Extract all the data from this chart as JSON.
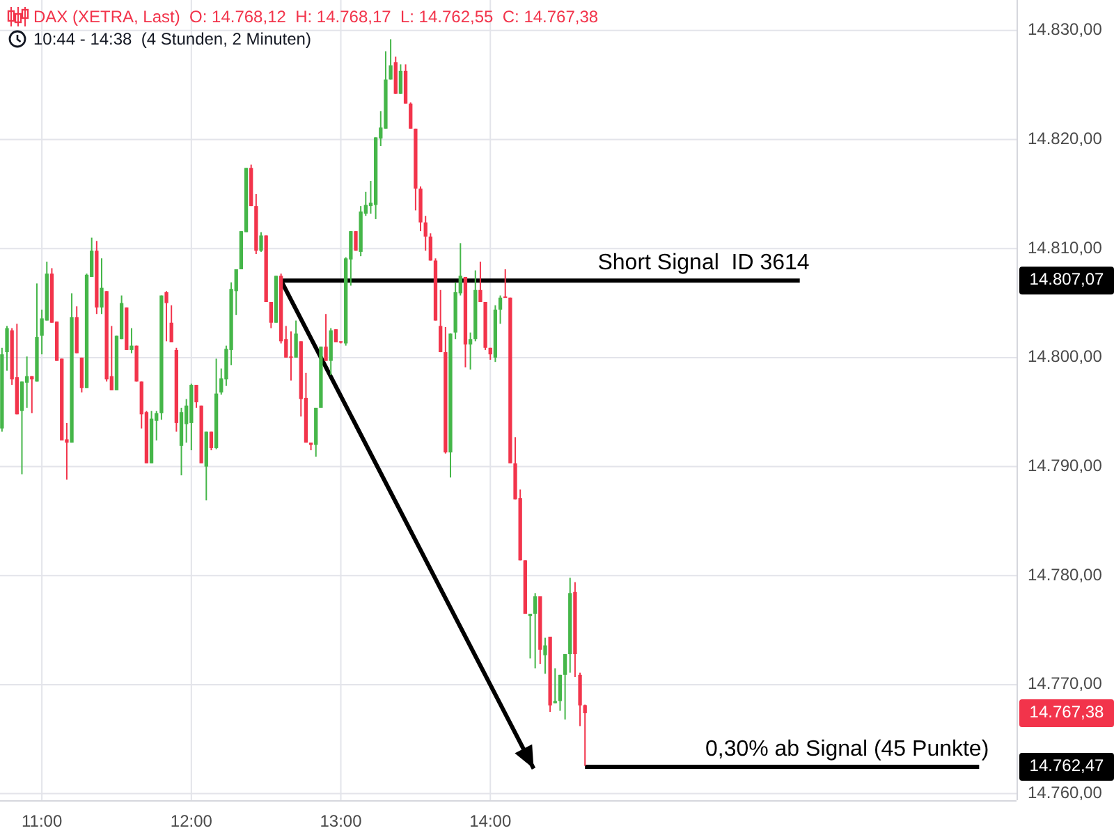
{
  "chart_data": {
    "type": "candlestick",
    "title": "DAX (XETRA, Last)  O: 14.768,12  H: 14.768,17  L: 14.762,55  C: 14.767,38",
    "subtitle": "10:44 - 14:38  (4 Stunden, 2 Minuten)",
    "x": [
      10.7333,
      10.7667,
      10.8,
      10.8333,
      10.8667,
      10.9,
      10.9333,
      10.9667,
      11,
      11.0333,
      11.0667,
      11.1,
      11.1333,
      11.1667,
      11.2,
      11.2333,
      11.2667,
      11.3,
      11.3333,
      11.3667,
      11.4,
      11.4333,
      11.4667,
      11.5,
      11.5333,
      11.5667,
      11.6,
      11.6333,
      11.6667,
      11.7,
      11.7333,
      11.7667,
      11.8,
      11.8333,
      11.8667,
      11.9,
      11.9333,
      11.9667,
      12,
      12.0333,
      12.0667,
      12.1,
      12.1333,
      12.1667,
      12.2,
      12.2333,
      12.2667,
      12.3,
      12.3333,
      12.3667,
      12.4,
      12.4333,
      12.4667,
      12.5,
      12.5333,
      12.5667,
      12.6,
      12.6333,
      12.6667,
      12.7,
      12.7333,
      12.7667,
      12.8,
      12.8333,
      12.8667,
      12.9,
      12.9333,
      12.9667,
      13,
      13.0333,
      13.0667,
      13.1,
      13.1333,
      13.1667,
      13.2,
      13.2333,
      13.2667,
      13.3,
      13.3333,
      13.3667,
      13.4,
      13.4333,
      13.4667,
      13.5,
      13.5333,
      13.5667,
      13.6,
      13.6333,
      13.6667,
      13.7,
      13.7333,
      13.7667,
      13.8,
      13.8333,
      13.8667,
      13.9,
      13.9333,
      13.9667,
      14,
      14.0333,
      14.0667,
      14.1,
      14.1333,
      14.1667,
      14.2,
      14.2333,
      14.2667,
      14.3,
      14.3333,
      14.3667,
      14.4,
      14.4333,
      14.4667,
      14.5,
      14.5333,
      14.5667,
      14.6,
      14.6333
    ],
    "ohlc": [
      [
        14793.5,
        14800.9,
        14793.2,
        14800.3
      ],
      [
        14800.5,
        14802.9,
        14798.8,
        14802.7
      ],
      [
        14802.5,
        14802.7,
        14797.5,
        14798.0
      ],
      [
        14798.2,
        14803.1,
        14794.8,
        14794.8
      ],
      [
        14795.1,
        14797.8,
        14789.3,
        14797.8
      ],
      [
        14797.7,
        14800.1,
        14795.4,
        14798.3
      ],
      [
        14798.3,
        14798.3,
        14794.9,
        14798.0
      ],
      [
        14797.8,
        14806.8,
        14797.8,
        14801.9
      ],
      [
        14802.0,
        14804.4,
        14800.3,
        14803.6
      ],
      [
        14803.4,
        14808.8,
        14803.4,
        14807.7
      ],
      [
        14807.7,
        14808.2,
        14803.2,
        14803.2
      ],
      [
        14803.3,
        14803.3,
        14799.7,
        14799.7
      ],
      [
        14799.9,
        14799.9,
        14792.4,
        14792.4
      ],
      [
        14792.5,
        14794.0,
        14788.8,
        14792.2
      ],
      [
        14792.2,
        14805.9,
        14792.2,
        14803.7
      ],
      [
        14803.7,
        14804.7,
        14800.4,
        14800.4
      ],
      [
        14800.0,
        14800.0,
        14796.8,
        14797.2
      ],
      [
        14797.2,
        14807.7,
        14797.2,
        14807.6
      ],
      [
        14807.4,
        14811.0,
        14807.4,
        14809.8
      ],
      [
        14809.8,
        14810.7,
        14804.0,
        14804.6
      ],
      [
        14804.6,
        14809.1,
        14804.0,
        14806.4
      ],
      [
        14806.1,
        14806.1,
        14797.8,
        14798.0
      ],
      [
        14798.3,
        14802.9,
        14797.0,
        14797.0
      ],
      [
        14797.0,
        14802.0,
        14797.0,
        14802.0
      ],
      [
        14801.7,
        14805.7,
        14801.7,
        14805.0
      ],
      [
        14804.6,
        14804.6,
        14800.7,
        14800.7
      ],
      [
        14800.7,
        14802.7,
        14800.4,
        14801.1
      ],
      [
        14801.1,
        14801.1,
        14797.8,
        14797.8
      ],
      [
        14797.8,
        14797.8,
        14793.5,
        14794.8
      ],
      [
        14795.0,
        14795.1,
        14790.3,
        14790.3
      ],
      [
        14790.3,
        14795.1,
        14790.3,
        14794.4
      ],
      [
        14794.2,
        14795.1,
        14792.4,
        14794.9
      ],
      [
        14794.9,
        14805.7,
        14794.3,
        14805.7
      ],
      [
        14806.0,
        14806.1,
        14801.5,
        14805.0
      ],
      [
        14803.2,
        14804.8,
        14801.4,
        14801.4
      ],
      [
        14800.7,
        14800.9,
        14793.2,
        14794.0
      ],
      [
        14791.9,
        14795.4,
        14789.2,
        14795.0
      ],
      [
        14793.9,
        14796.2,
        14792.2,
        14795.6
      ],
      [
        14794.0,
        14797.6,
        14791.5,
        14797.5
      ],
      [
        14797.5,
        14797.5,
        14795.4,
        14795.9
      ],
      [
        14795.6,
        14795.6,
        14790.3,
        14790.3
      ],
      [
        14790.0,
        14793.2,
        14786.9,
        14793.2
      ],
      [
        14793.2,
        14793.2,
        14791.5,
        14791.7
      ],
      [
        14791.7,
        14799.9,
        14791.6,
        14796.7
      ],
      [
        14796.8,
        14799.0,
        14796.6,
        14798.1
      ],
      [
        14798.0,
        14801.1,
        14797.4,
        14800.8
      ],
      [
        14800.7,
        14806.9,
        14799.3,
        14806.3
      ],
      [
        14806.1,
        14808.1,
        14803.9,
        14808.1
      ],
      [
        14808.1,
        14811.6,
        14808.1,
        14811.6
      ],
      [
        14811.5,
        14817.4,
        14811.5,
        14817.4
      ],
      [
        14817.4,
        14817.7,
        14813.9,
        14813.9
      ],
      [
        14813.9,
        14815.0,
        14809.5,
        14809.8
      ],
      [
        14809.8,
        14811.5,
        14809.7,
        14811.2
      ],
      [
        14811.2,
        14811.2,
        14805.1,
        14805.1
      ],
      [
        14805.1,
        14805.1,
        14802.7,
        14803.2
      ],
      [
        14803.2,
        14807.5,
        14803.2,
        14807.5
      ],
      [
        14807.5,
        14807.7,
        14801.3,
        14801.5
      ],
      [
        14801.7,
        14802.9,
        14800.0,
        14800.0
      ],
      [
        14800.1,
        14802.4,
        14797.9,
        14800.0
      ],
      [
        14800.0,
        14803.4,
        14800.0,
        14802.2
      ],
      [
        14801.5,
        14801.5,
        14794.6,
        14796.2
      ],
      [
        14796.3,
        14798.6,
        14792.2,
        14792.2
      ],
      [
        14792.2,
        14792.2,
        14791.5,
        14792.0
      ],
      [
        14792.0,
        14795.4,
        14790.9,
        14795.4
      ],
      [
        14795.4,
        14801.0,
        14795.4,
        14801.0
      ],
      [
        14801.0,
        14804.0,
        14799.7,
        14799.7
      ],
      [
        14799.7,
        14802.7,
        14798.4,
        14802.5
      ],
      [
        14802.6,
        14802.6,
        14801.4,
        14801.4
      ],
      [
        14801.5,
        14801.5,
        14801.3,
        14801.4
      ],
      [
        14801.3,
        14809.2,
        14801.1,
        14809.1
      ],
      [
        14809.0,
        14811.6,
        14806.6,
        14811.6
      ],
      [
        14811.6,
        14811.6,
        14809.8,
        14809.8
      ],
      [
        14809.7,
        14813.9,
        14809.3,
        14813.4
      ],
      [
        14813.2,
        14815.2,
        14813.0,
        14814.0
      ],
      [
        14813.9,
        14816.2,
        14813.2,
        14814.2
      ],
      [
        14814.0,
        14820.2,
        14812.7,
        14820.2
      ],
      [
        14820.1,
        14822.6,
        14819.4,
        14821.1
      ],
      [
        14821.0,
        14828.1,
        14821.0,
        14825.5
      ],
      [
        14825.5,
        14829.2,
        14825.5,
        14826.8
      ],
      [
        14827.1,
        14827.6,
        14824.2,
        14824.2
      ],
      [
        14824.2,
        14826.9,
        14824.2,
        14826.3
      ],
      [
        14826.3,
        14826.9,
        14823.3,
        14823.3
      ],
      [
        14823.3,
        14823.4,
        14821.0,
        14821.0
      ],
      [
        14821.0,
        14821.0,
        14813.5,
        14815.5
      ],
      [
        14815.5,
        14815.7,
        14811.6,
        14812.4
      ],
      [
        14812.4,
        14813.0,
        14809.8,
        14811.1
      ],
      [
        14811.1,
        14811.4,
        14808.9,
        14808.9
      ],
      [
        14808.9,
        14809.1,
        14803.4,
        14803.4
      ],
      [
        14802.9,
        14806.2,
        14800.5,
        14800.5
      ],
      [
        14800.5,
        14802.8,
        14791.2,
        14791.3
      ],
      [
        14791.3,
        14802.2,
        14789.0,
        14802.2
      ],
      [
        14802.3,
        14806.9,
        14801.7,
        14806.0
      ],
      [
        14805.9,
        14810.5,
        14805.7,
        14807.5
      ],
      [
        14807.4,
        14807.4,
        14799.1,
        14801.2
      ],
      [
        14801.2,
        14802.3,
        14798.9,
        14801.7
      ],
      [
        14801.7,
        14808.0,
        14801.5,
        14806.2
      ],
      [
        14806.2,
        14808.8,
        14805.1,
        14805.1
      ],
      [
        14805.1,
        14805.1,
        14800.7,
        14800.9
      ],
      [
        14800.9,
        14800.9,
        14799.8,
        14800.3
      ],
      [
        14800.0,
        14804.8,
        14799.6,
        14804.4
      ],
      [
        14804.4,
        14805.7,
        14803.1,
        14805.5
      ],
      [
        14805.6,
        14808.1,
        14805.5,
        14805.5
      ],
      [
        14805.5,
        14805.5,
        14790.3,
        14790.3
      ],
      [
        14790.3,
        14792.7,
        14787.0,
        14787.0
      ],
      [
        14787.1,
        14787.9,
        14781.4,
        14781.4
      ],
      [
        14781.4,
        14781.4,
        14776.5,
        14776.5
      ],
      [
        14776.3,
        14776.5,
        14772.4,
        14776.5
      ],
      [
        14776.5,
        14778.4,
        14771.5,
        14778.1
      ],
      [
        14778.1,
        14778.1,
        14771.9,
        14773.2
      ],
      [
        14772.7,
        14774.3,
        14771.0,
        14773.6
      ],
      [
        14774.4,
        14774.4,
        14767.5,
        14768.1
      ],
      [
        14768.3,
        14771.5,
        14768.3,
        14768.5
      ],
      [
        14768.5,
        14770.9,
        14767.6,
        14770.9
      ],
      [
        14770.9,
        14772.8,
        14766.8,
        14772.8
      ],
      [
        14772.8,
        14779.8,
        14771.1,
        14778.4
      ],
      [
        14778.5,
        14779.4,
        14770.7,
        14772.8
      ],
      [
        14770.9,
        14771.1,
        14766.2,
        14768.1
      ],
      [
        14768.12,
        14768.17,
        14762.55,
        14767.38
      ]
    ],
    "colors": [
      "#45b649",
      "#45b649",
      "#f2344b",
      "#f2344b",
      "#45b649",
      "#45b649",
      "#f2344b",
      "#45b649",
      "#45b649",
      "#45b649",
      "#f2344b",
      "#f2344b",
      "#f2344b",
      "#f2344b",
      "#45b649",
      "#f2344b",
      "#f2344b",
      "#45b649",
      "#45b649",
      "#f2344b",
      "#45b649",
      "#f2344b",
      "#f2344b",
      "#45b649",
      "#45b649",
      "#f2344b",
      "#45b649",
      "#f2344b",
      "#f2344b",
      "#f2344b",
      "#45b649",
      "#45b649",
      "#45b649",
      "#f2344b",
      "#f2344b",
      "#f2344b",
      "#45b649",
      "#45b649",
      "#45b649",
      "#f2344b",
      "#f2344b",
      "#45b649",
      "#f2344b",
      "#45b649",
      "#45b649",
      "#45b649",
      "#45b649",
      "#45b649",
      "#45b649",
      "#45b649",
      "#f2344b",
      "#f2344b",
      "#45b649",
      "#f2344b",
      "#f2344b",
      "#45b649",
      "#f2344b",
      "#f2344b",
      "#f2344b",
      "#45b649",
      "#f2344b",
      "#f2344b",
      "#f2344b",
      "#45b649",
      "#45b649",
      "#f2344b",
      "#45b649",
      "#f2344b",
      "#f2344b",
      "#45b649",
      "#45b649",
      "#f2344b",
      "#45b649",
      "#45b649",
      "#45b649",
      "#45b649",
      "#45b649",
      "#45b649",
      "#45b649",
      "#f2344b",
      "#45b649",
      "#f2344b",
      "#f2344b",
      "#f2344b",
      "#f2344b",
      "#f2344b",
      "#f2344b",
      "#f2344b",
      "#f2344b",
      "#f2344b",
      "#45b649",
      "#45b649",
      "#45b649",
      "#f2344b",
      "#45b649",
      "#45b649",
      "#f2344b",
      "#f2344b",
      "#f2344b",
      "#45b649",
      "#45b649",
      "#f2344b",
      "#f2344b",
      "#f2344b",
      "#f2344b",
      "#f2344b",
      "#45b649",
      "#45b649",
      "#f2344b",
      "#45b649",
      "#f2344b",
      "#45b649",
      "#45b649",
      "#45b649",
      "#45b649",
      "#f2344b",
      "#f2344b",
      "#f2344b"
    ],
    "series": [
      {
        "type": "line",
        "name": "Short Signal  ID 3614",
        "color": "#000000",
        "x": [
          12.6,
          16.07
        ],
        "values": [
          14807.07,
          14807.07
        ]
      },
      {
        "type": "line",
        "name": "0,30% ab Signal (45 Punkte)",
        "color": "#000000",
        "x": [
          14.6333,
          17.27
        ],
        "values": [
          14762.47,
          14762.47
        ]
      },
      {
        "type": "line",
        "color": "#000000",
        "x": [
          12.6,
          14.29
        ],
        "values": [
          14807.07,
          14762.3
        ]
      }
    ],
    "xlim": [
      10.72,
      17.52
    ],
    "ylim": [
      14759.4,
      14832.8
    ],
    "y2lim": [
      14759.4,
      14832.8
    ],
    "xticks": [
      {
        "value": 11,
        "label": "11:00"
      },
      {
        "value": 12,
        "label": "12:00"
      },
      {
        "value": 13,
        "label": "13:00"
      },
      {
        "value": 14,
        "label": "14:00"
      }
    ],
    "yticks": [
      {
        "value": 14760,
        "label": "14.760,00"
      },
      {
        "value": 14770,
        "label": "14.770,00"
      },
      {
        "value": 14780,
        "label": "14.780,00"
      },
      {
        "value": 14790,
        "label": "14.790,00"
      },
      {
        "value": 14800,
        "label": "14.800,00"
      },
      {
        "value": 14810,
        "label": "14.810,00"
      },
      {
        "value": 14820,
        "label": "14.820,00"
      },
      {
        "value": 14830,
        "label": "14.830,00"
      }
    ],
    "y2ticks": [
      {
        "value": 14807.07,
        "label": "14.807,07"
      },
      {
        "value": 14767.38,
        "label": "14.767,38"
      },
      {
        "value": 14762.47,
        "label": "14.762,47"
      }
    ],
    "grid": true
  }
}
